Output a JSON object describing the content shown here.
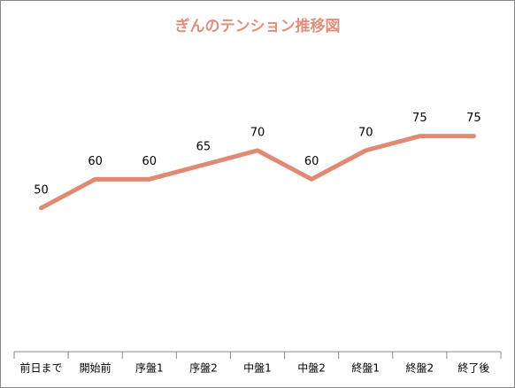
{
  "chart_data": {
    "type": "line",
    "title": "ぎんのテンション推移図",
    "categories": [
      "前日まで",
      "開始前",
      "序盤1",
      "序盤2",
      "中盤1",
      "中盤2",
      "終盤1",
      "終盤2",
      "終了後"
    ],
    "values": [
      50,
      60,
      60,
      65,
      70,
      60,
      70,
      75,
      75
    ],
    "color": "#e08a73",
    "ylim": [
      0,
      90
    ],
    "data_labels": true
  }
}
